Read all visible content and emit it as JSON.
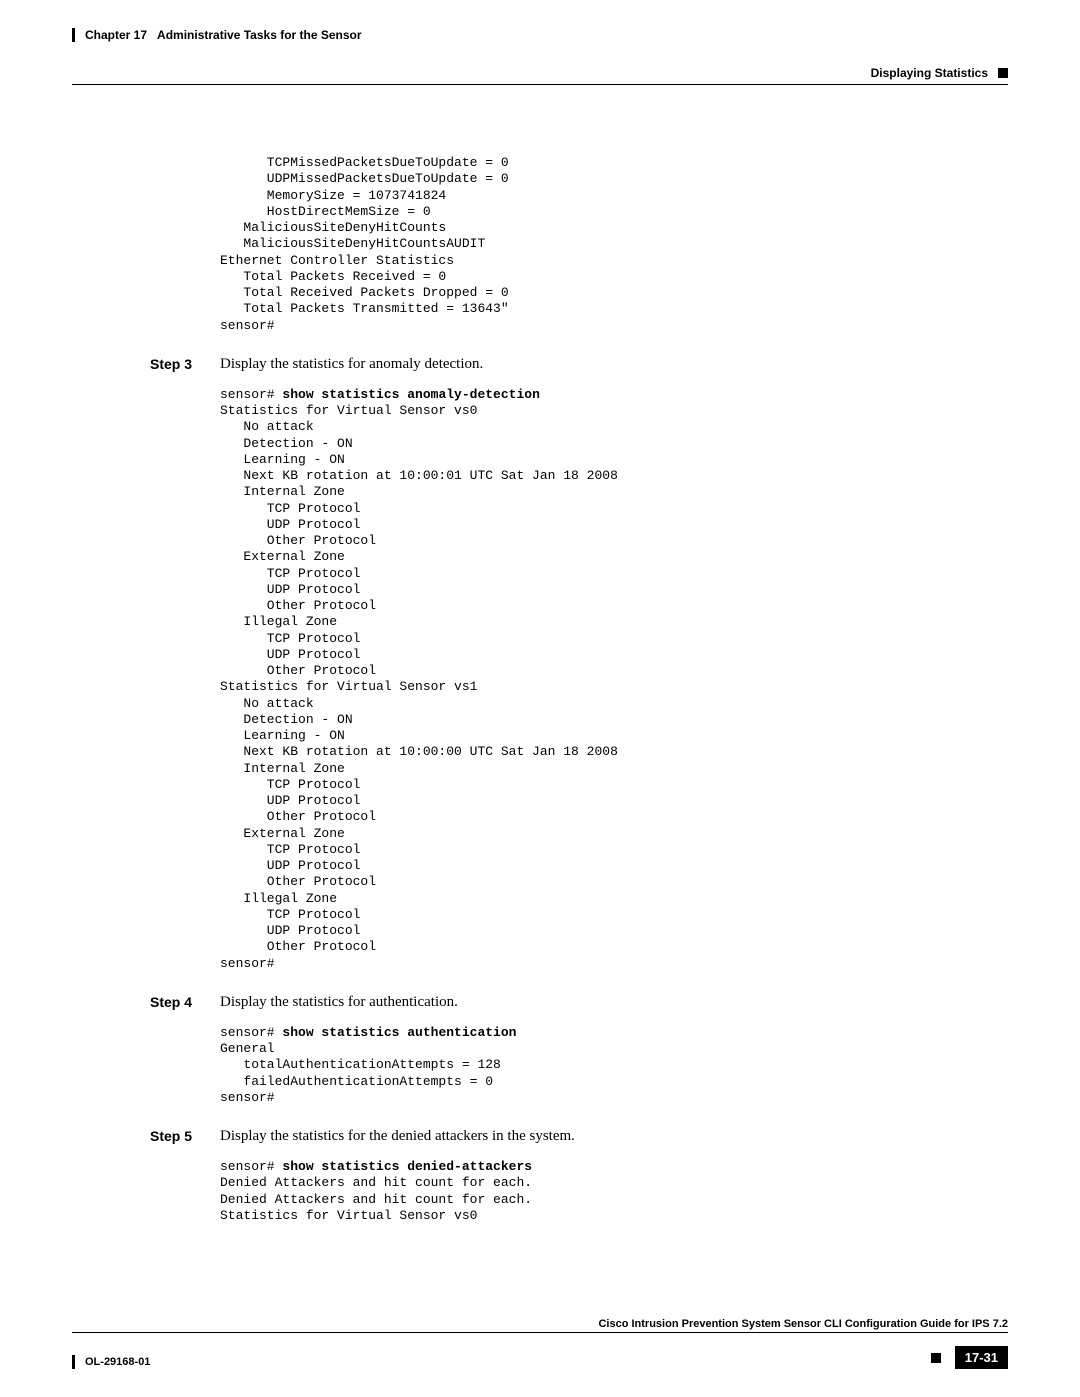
{
  "header": {
    "chapter": "Chapter 17",
    "chapter_title": "Administrative Tasks for the Sensor",
    "section": "Displaying Statistics"
  },
  "code_block_1": "      TCPMissedPacketsDueToUpdate = 0\n      UDPMissedPacketsDueToUpdate = 0\n      MemorySize = 1073741824\n      HostDirectMemSize = 0\n   MaliciousSiteDenyHitCounts\n   MaliciousSiteDenyHitCountsAUDIT\nEthernet Controller Statistics\n   Total Packets Received = 0\n   Total Received Packets Dropped = 0\n   Total Packets Transmitted = 13643\"\nsensor#",
  "step3": {
    "label": "Step 3",
    "text": "Display the statistics for anomaly detection.",
    "command_prefix": "sensor# ",
    "command": "show statistics anomaly-detection",
    "output": "Statistics for Virtual Sensor vs0\n   No attack\n   Detection - ON\n   Learning - ON\n   Next KB rotation at 10:00:01 UTC Sat Jan 18 2008\n   Internal Zone\n      TCP Protocol\n      UDP Protocol\n      Other Protocol\n   External Zone\n      TCP Protocol\n      UDP Protocol\n      Other Protocol\n   Illegal Zone\n      TCP Protocol\n      UDP Protocol\n      Other Protocol\nStatistics for Virtual Sensor vs1\n   No attack\n   Detection - ON\n   Learning - ON\n   Next KB rotation at 10:00:00 UTC Sat Jan 18 2008\n   Internal Zone\n      TCP Protocol\n      UDP Protocol\n      Other Protocol\n   External Zone\n      TCP Protocol\n      UDP Protocol\n      Other Protocol\n   Illegal Zone\n      TCP Protocol\n      UDP Protocol\n      Other Protocol\nsensor#"
  },
  "step4": {
    "label": "Step 4",
    "text": "Display the statistics for authentication.",
    "command_prefix": "sensor# ",
    "command": "show statistics authentication",
    "output": "General\n   totalAuthenticationAttempts = 128\n   failedAuthenticationAttempts = 0\nsensor#"
  },
  "step5": {
    "label": "Step 5",
    "text": "Display the statistics for the denied attackers in the system.",
    "command_prefix": "sensor# ",
    "command": "show statistics denied-attackers",
    "output": "Denied Attackers and hit count for each.\nDenied Attackers and hit count for each.\nStatistics for Virtual Sensor vs0"
  },
  "footer": {
    "doc_id": "OL-29168-01",
    "guide_title": "Cisco Intrusion Prevention System Sensor CLI Configuration Guide for IPS 7.2",
    "page_num": "17-31"
  }
}
